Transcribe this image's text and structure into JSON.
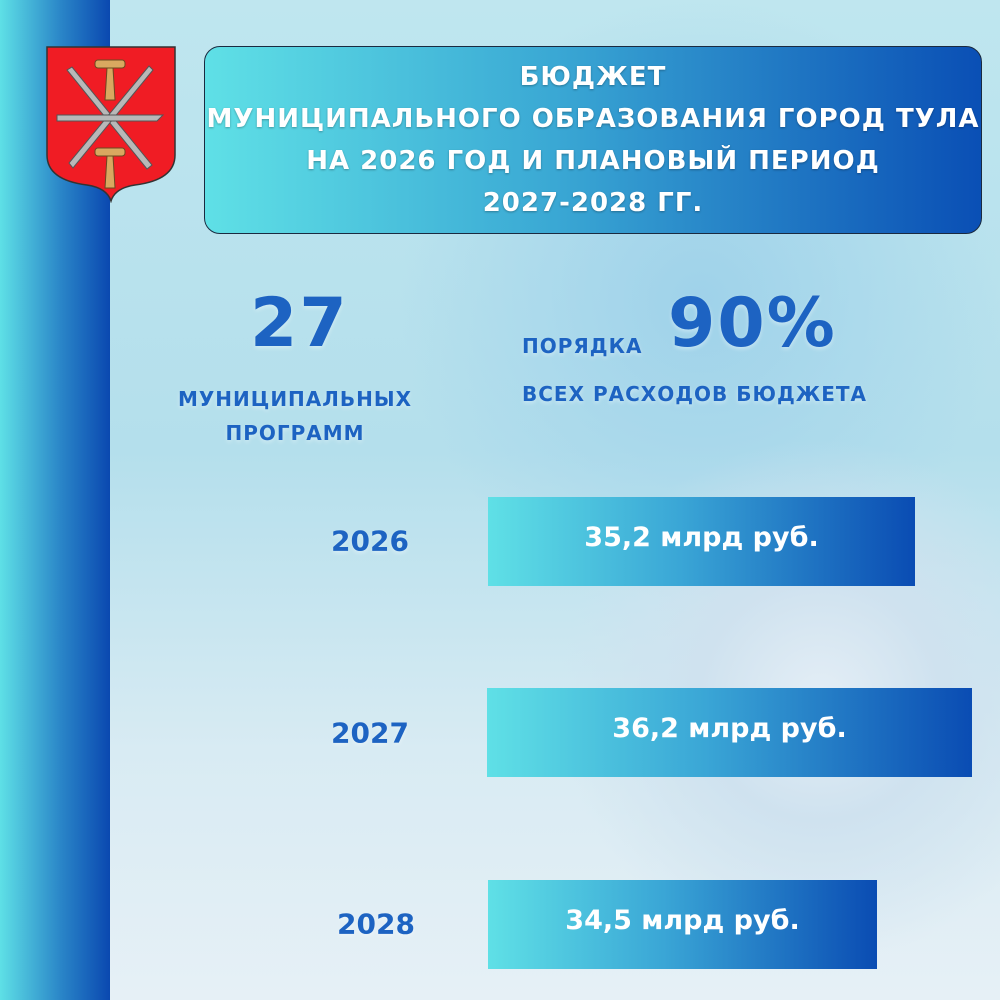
{
  "colors": {
    "accent": "#1d63c2",
    "gradient_start": "#5fe0e6",
    "gradient_end": "#0a4cb3",
    "arms_red": "#f01c24"
  },
  "header": {
    "lines": [
      "БЮДЖЕТ",
      "МУНИЦИПАЛЬНОГО ОБРАЗОВАНИЯ ГОРОД ТУЛА",
      "НА 2026 ГОД И ПЛАНОВЫЙ ПЕРИОД",
      "2027-2028 ГГ."
    ]
  },
  "stats": {
    "programs": {
      "value": "27",
      "label_line1": "МУНИЦИПАЛЬНЫХ",
      "label_line2": "ПРОГРАММ"
    },
    "share": {
      "prefix": "ПОРЯДКА",
      "value": "90%",
      "label": "ВСЕХ РАСХОДОВ БЮДЖЕТА"
    }
  },
  "budget": [
    {
      "year": "2026",
      "amount": "35,2 млрд руб."
    },
    {
      "year": "2027",
      "amount": "36,2 млрд руб."
    },
    {
      "year": "2028",
      "amount": "34,5 млрд руб."
    }
  ],
  "logo": {
    "name": "coat-of-arms-tula"
  }
}
